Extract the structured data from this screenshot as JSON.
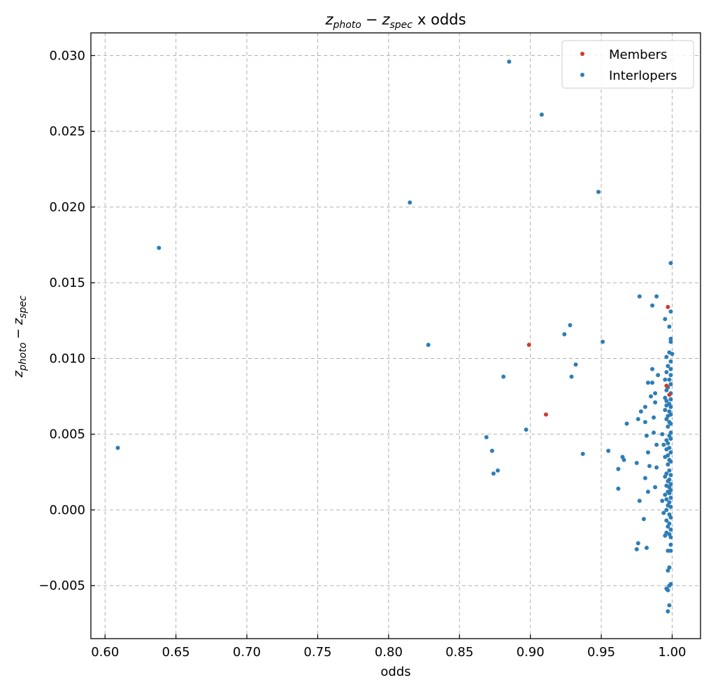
{
  "chart_data": {
    "type": "scatter",
    "xlabel": "odds",
    "ylabel": {
      "base1": "z",
      "sub1": "photo",
      "op": "−",
      "base2": "z",
      "sub2": "spec"
    },
    "title": {
      "base1": "z",
      "sub1": "photo",
      "op": "−",
      "base2": "z",
      "sub2": "spec",
      "suffix": "x odds"
    },
    "xlim": [
      0.59,
      1.02
    ],
    "ylim": [
      -0.0085,
      0.0315
    ],
    "xticks": [
      0.6,
      0.65,
      0.7,
      0.75,
      0.8,
      0.85,
      0.9,
      0.95,
      1.0
    ],
    "xtick_labels": [
      "0.60",
      "0.65",
      "0.70",
      "0.75",
      "0.80",
      "0.85",
      "0.90",
      "0.95",
      "1.00"
    ],
    "yticks": [
      -0.005,
      0.0,
      0.005,
      0.01,
      0.015,
      0.02,
      0.025,
      0.03
    ],
    "ytick_labels": [
      "−0.005",
      "0.000",
      "0.005",
      "0.010",
      "0.015",
      "0.020",
      "0.025",
      "0.030"
    ],
    "grid": true,
    "legend_position": "top-right",
    "series": [
      {
        "name": "Members",
        "color": "#d03a2a",
        "points": [
          [
            0.997,
            0.0134
          ],
          [
            0.899,
            0.0109
          ],
          [
            0.996,
            0.0082
          ],
          [
            0.998,
            0.0076
          ],
          [
            0.911,
            0.0063
          ]
        ]
      },
      {
        "name": "Interlopers",
        "color": "#2f7db5",
        "points": [
          [
            0.885,
            0.0296
          ],
          [
            0.908,
            0.0261
          ],
          [
            0.948,
            0.021
          ],
          [
            0.815,
            0.0203
          ],
          [
            0.638,
            0.0173
          ],
          [
            0.999,
            0.0163
          ],
          [
            0.977,
            0.0141
          ],
          [
            0.989,
            0.0141
          ],
          [
            0.986,
            0.0135
          ],
          [
            0.999,
            0.0131
          ],
          [
            0.995,
            0.0126
          ],
          [
            0.928,
            0.0122
          ],
          [
            0.998,
            0.0121
          ],
          [
            0.924,
            0.0116
          ],
          [
            0.999,
            0.0113
          ],
          [
            0.999,
            0.0111
          ],
          [
            0.951,
            0.0111
          ],
          [
            0.828,
            0.0109
          ],
          [
            0.998,
            0.0104
          ],
          [
            1.0,
            0.0103
          ],
          [
            0.996,
            0.0101
          ],
          [
            0.999,
            0.0098
          ],
          [
            0.932,
            0.0096
          ],
          [
            0.997,
            0.0095
          ],
          [
            0.999,
            0.0093
          ],
          [
            0.986,
            0.0093
          ],
          [
            0.996,
            0.0091
          ],
          [
            0.999,
            0.0089
          ],
          [
            0.99,
            0.0089
          ],
          [
            0.881,
            0.0088
          ],
          [
            0.929,
            0.0088
          ],
          [
            0.995,
            0.0086
          ],
          [
            0.998,
            0.0086
          ],
          [
            0.999,
            0.0083
          ],
          [
            0.986,
            0.0084
          ],
          [
            0.983,
            0.0084
          ],
          [
            0.997,
            0.0081
          ],
          [
            0.996,
            0.0079
          ],
          [
            0.999,
            0.0077
          ],
          [
            0.988,
            0.0077
          ],
          [
            0.985,
            0.0075
          ],
          [
            0.995,
            0.0074
          ],
          [
            0.999,
            0.0073
          ],
          [
            0.996,
            0.0072
          ],
          [
            0.998,
            0.007
          ],
          [
            0.988,
            0.0071
          ],
          [
            0.996,
            0.0069
          ],
          [
            0.999,
            0.0068
          ],
          [
            0.981,
            0.0068
          ],
          [
            0.995,
            0.0066
          ],
          [
            0.998,
            0.0065
          ],
          [
            0.978,
            0.0065
          ],
          [
            0.999,
            0.0063
          ],
          [
            0.997,
            0.0062
          ],
          [
            0.987,
            0.0061
          ],
          [
            0.976,
            0.006
          ],
          [
            0.996,
            0.006
          ],
          [
            0.998,
            0.0058
          ],
          [
            0.981,
            0.0058
          ],
          [
            0.999,
            0.0057
          ],
          [
            0.968,
            0.0057
          ],
          [
            0.997,
            0.0055
          ],
          [
            0.897,
            0.0053
          ],
          [
            0.999,
            0.0051
          ],
          [
            0.987,
            0.0051
          ],
          [
            0.993,
            0.005
          ],
          [
            0.998,
            0.0049
          ],
          [
            0.982,
            0.0049
          ],
          [
            0.869,
            0.0048
          ],
          [
            0.999,
            0.0047
          ],
          [
            0.996,
            0.0046
          ],
          [
            0.997,
            0.0044
          ],
          [
            0.989,
            0.0043
          ],
          [
            0.994,
            0.0043
          ],
          [
            0.998,
            0.0041
          ],
          [
            0.996,
            0.004
          ],
          [
            0.609,
            0.0041
          ],
          [
            0.873,
            0.0039
          ],
          [
            0.955,
            0.0039
          ],
          [
            0.999,
            0.0038
          ],
          [
            0.983,
            0.0038
          ],
          [
            0.937,
            0.0037
          ],
          [
            0.997,
            0.0036
          ],
          [
            0.965,
            0.0035
          ],
          [
            0.995,
            0.0035
          ],
          [
            0.966,
            0.0033
          ],
          [
            0.998,
            0.0033
          ],
          [
            0.999,
            0.0032
          ],
          [
            0.975,
            0.0031
          ],
          [
            0.997,
            0.003
          ],
          [
            0.984,
            0.0029
          ],
          [
            0.989,
            0.0028
          ],
          [
            0.962,
            0.0027
          ],
          [
            0.998,
            0.0026
          ],
          [
            0.877,
            0.0026
          ],
          [
            0.874,
            0.0024
          ],
          [
            0.996,
            0.0024
          ],
          [
            0.999,
            0.0023
          ],
          [
            0.995,
            0.0022
          ],
          [
            0.981,
            0.0021
          ],
          [
            0.998,
            0.002
          ],
          [
            0.997,
            0.0019
          ],
          [
            0.999,
            0.0017
          ],
          [
            0.996,
            0.0016
          ],
          [
            0.998,
            0.0015
          ],
          [
            0.988,
            0.0015
          ],
          [
            0.962,
            0.0014
          ],
          [
            0.999,
            0.0013
          ],
          [
            0.997,
            0.0012
          ],
          [
            0.983,
            0.0012
          ],
          [
            0.998,
            0.0011
          ],
          [
            0.995,
            0.001
          ],
          [
            0.999,
            0.0008
          ],
          [
            0.996,
            0.0007
          ],
          [
            0.993,
            0.0006
          ],
          [
            0.977,
            0.0006
          ],
          [
            0.998,
            0.0005
          ],
          [
            0.997,
            0.0003
          ],
          [
            0.999,
            0.0002
          ],
          [
            0.996,
            0.0
          ],
          [
            0.994,
            -0.0002
          ],
          [
            0.998,
            -0.0003
          ],
          [
            0.999,
            -0.0005
          ],
          [
            0.98,
            -0.0006
          ],
          [
            0.996,
            -0.0007
          ],
          [
            0.998,
            -0.0009
          ],
          [
            0.997,
            -0.0011
          ],
          [
            0.999,
            -0.0013
          ],
          [
            0.996,
            -0.0015
          ],
          [
            0.998,
            -0.0016
          ],
          [
            0.999,
            -0.0018
          ],
          [
            0.995,
            -0.0017
          ],
          [
            0.976,
            -0.0022
          ],
          [
            0.999,
            -0.0023
          ],
          [
            0.975,
            -0.0026
          ],
          [
            0.982,
            -0.0025
          ],
          [
            0.997,
            -0.0027
          ],
          [
            0.999,
            -0.0027
          ],
          [
            0.998,
            -0.0038
          ],
          [
            0.997,
            -0.004
          ],
          [
            0.999,
            -0.0049
          ],
          [
            0.998,
            -0.005
          ],
          [
            0.996,
            -0.0052
          ],
          [
            0.997,
            -0.0053
          ],
          [
            0.998,
            -0.0063
          ],
          [
            0.997,
            -0.0067
          ]
        ]
      }
    ]
  }
}
